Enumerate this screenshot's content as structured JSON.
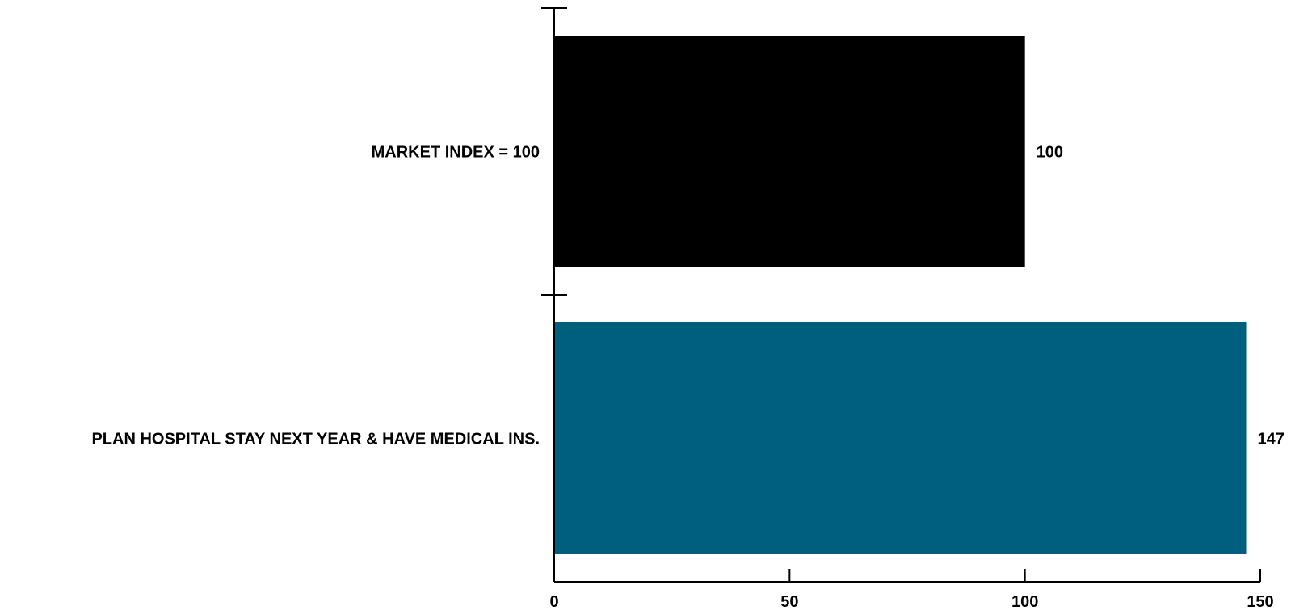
{
  "chart_data": {
    "type": "bar",
    "orientation": "horizontal",
    "categories": [
      "MARKET INDEX = 100",
      "PLAN HOSPITAL STAY NEXT YEAR & HAVE MEDICAL INS."
    ],
    "values": [
      100,
      147
    ],
    "value_labels": [
      "100",
      "147"
    ],
    "colors": [
      "#000000",
      "#005e7e"
    ],
    "title": "",
    "xlabel": "",
    "ylabel": "",
    "xlim": [
      0,
      150
    ],
    "x_ticks": [
      0,
      50,
      100,
      150
    ],
    "x_tick_labels": [
      "0",
      "50",
      "100",
      "150"
    ],
    "grid": false,
    "legend": "none"
  }
}
